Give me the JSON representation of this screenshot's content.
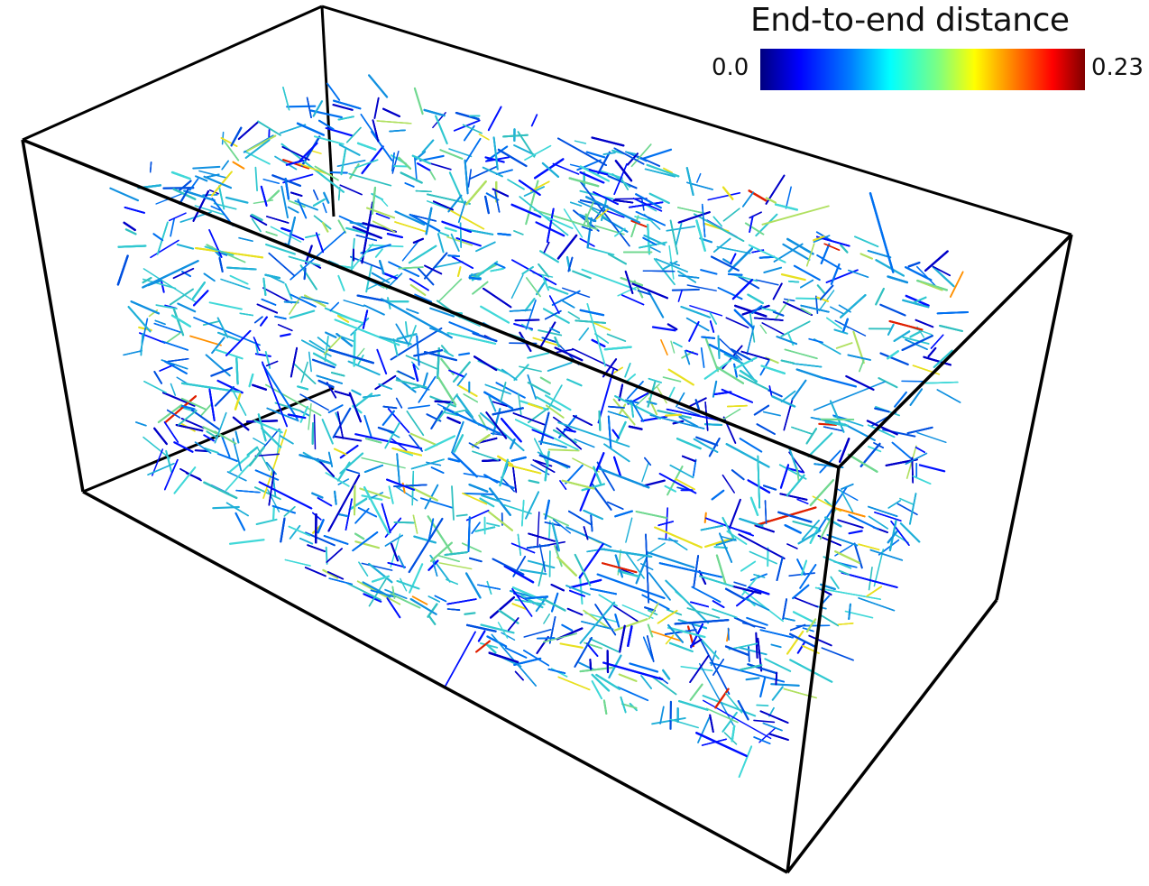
{
  "legend": {
    "title": "End-to-end distance",
    "min_label": "0.0",
    "max_label": "0.23",
    "colormap": [
      "#00007f",
      "#0000ff",
      "#007fff",
      "#00ffff",
      "#7fff7f",
      "#ffff00",
      "#ff7f00",
      "#ff0000",
      "#7f0000"
    ]
  },
  "colors": {
    "box_edge": "#000000",
    "background": "#ffffff"
  }
}
